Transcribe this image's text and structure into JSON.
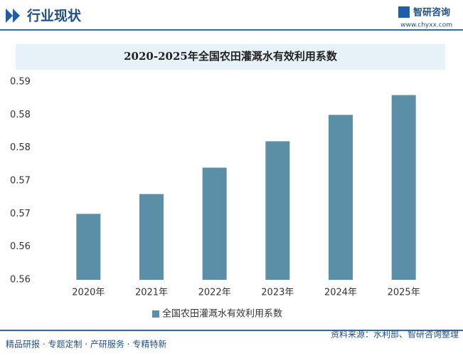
{
  "header": {
    "title": "行业现状",
    "brand": "智研咨询",
    "url": "www.chyxx.com"
  },
  "footer": {
    "left": "精品研报 · 专题定制 · 产研服务 · 专精特新",
    "source": "资料来源：水利部、智研咨询整理"
  },
  "chart_data": {
    "type": "bar",
    "title": "2020-2025年全国农田灌溉水有效利用系数",
    "categories": [
      "2020年",
      "2021年",
      "2022年",
      "2023年",
      "2024年",
      "2025年"
    ],
    "series": [
      {
        "name": "全国农田灌溉水有效利用系数",
        "color": "#5b8fa8",
        "values": [
          0.565,
          0.568,
          0.572,
          0.576,
          0.58,
          0.583
        ]
      }
    ],
    "ylim": [
      0.555,
      0.585
    ],
    "yticks": [
      {
        "value": 0.555,
        "label": "0.56"
      },
      {
        "value": 0.56,
        "label": "0.56"
      },
      {
        "value": 0.565,
        "label": "0.57"
      },
      {
        "value": 0.57,
        "label": "0.57"
      },
      {
        "value": 0.575,
        "label": "0.58"
      },
      {
        "value": 0.58,
        "label": "0.58"
      },
      {
        "value": 0.585,
        "label": "0.59"
      }
    ],
    "grid": false
  }
}
